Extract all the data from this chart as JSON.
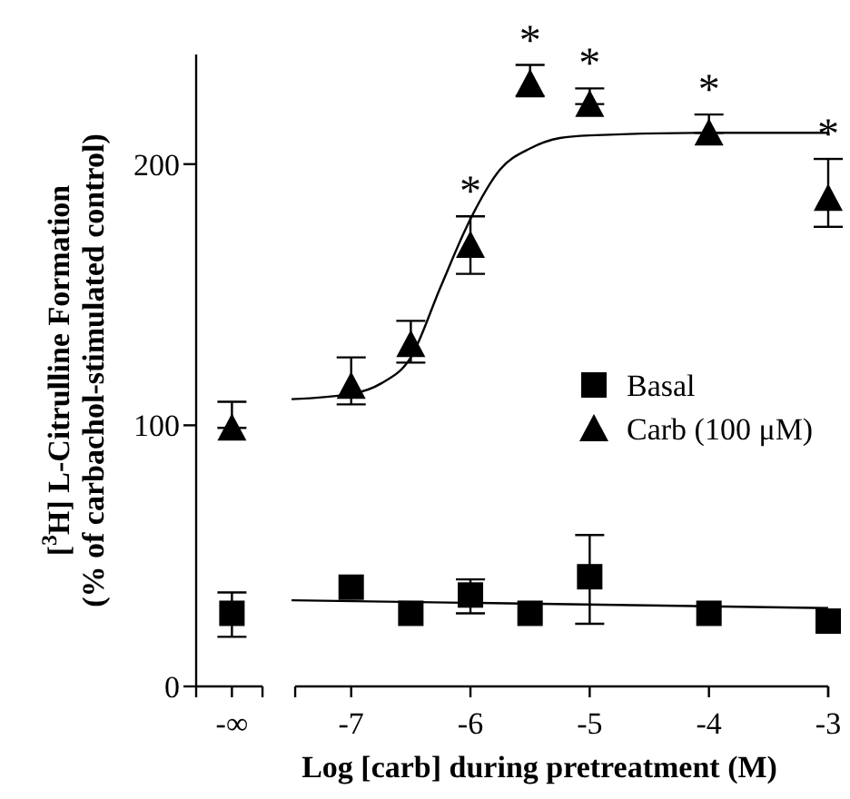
{
  "chart_data": {
    "type": "scatter",
    "xlabel": "Log [carb] during pretreatment (M)",
    "ylabel": "[$^{3}$H] L-Citrulline Formation\n(% of carbachol-stimulated control)",
    "xlim": [
      -8.3,
      -3
    ],
    "xticks": [
      {
        "value": -8,
        "label": "-∞"
      },
      -7,
      -6,
      -5,
      -4,
      -3
    ],
    "ylim": [
      0,
      242
    ],
    "yticks": [
      0,
      100,
      200
    ],
    "legend": "right",
    "grid": false,
    "series": [
      {
        "name": "Basal",
        "marker": "square",
        "color": "#000000",
        "x": [
          -8,
          -7,
          -6.5,
          -6,
          -5.5,
          -5,
          -4,
          -3
        ],
        "values": [
          28,
          38,
          28,
          35,
          28,
          42,
          28,
          25
        ],
        "errors": [
          [
            19,
            36
          ],
          null,
          null,
          [
            28,
            41
          ],
          null,
          [
            24,
            58
          ],
          null,
          null
        ]
      },
      {
        "name": "Carb (100 μM)",
        "marker": "triangle",
        "color": "#000000",
        "x": [
          -8,
          -7,
          -6.5,
          -6,
          -5.5,
          -5,
          -4,
          -3
        ],
        "values": [
          99,
          115,
          131,
          169,
          231,
          223,
          212,
          187
        ],
        "errors": [
          [
            99,
            109
          ],
          [
            108,
            126
          ],
          [
            124,
            140
          ],
          [
            158,
            180
          ],
          [
            226,
            238
          ],
          [
            223,
            229
          ],
          [
            212,
            219
          ],
          [
            176,
            202
          ]
        ]
      },
      {
        "type": "line",
        "marker": "none",
        "color": "#000000",
        "x": [
          -7.5,
          -3
        ],
        "values": [
          33,
          30
        ]
      },
      {
        "type": "line",
        "marker": "none",
        "color": "#000000",
        "x": [
          -7.5,
          -7,
          -6.75,
          -6.5,
          -6.25,
          -6,
          -5.75,
          -5.5,
          -5.25,
          -5,
          -4,
          -3
        ],
        "values": [
          110,
          112,
          116,
          126,
          153,
          179,
          198,
          206,
          210,
          211,
          212,
          212
        ]
      }
    ],
    "annotations": [
      {
        "text": "*",
        "x": -6,
        "y": 169
      },
      {
        "text": "*",
        "x": -5.5,
        "y": 231
      },
      {
        "text": "*",
        "x": -5,
        "y": 223
      },
      {
        "text": "*",
        "x": -4,
        "y": 212
      },
      {
        "text": "*",
        "x": -3,
        "y": 187
      }
    ]
  }
}
